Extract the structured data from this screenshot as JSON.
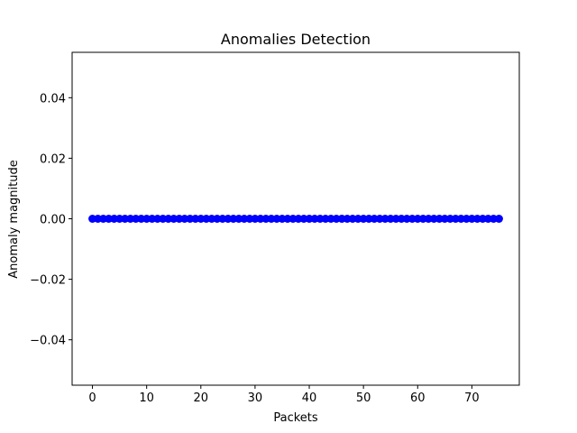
{
  "chart_data": {
    "type": "scatter",
    "title": "Anomalies Detection",
    "xlabel": "Packets",
    "ylabel": "Anomaly magnitude",
    "xlim": [
      -3.75,
      78.75
    ],
    "ylim": [
      -0.055,
      0.055
    ],
    "x_ticks": [
      0,
      10,
      20,
      30,
      40,
      50,
      60,
      70
    ],
    "y_ticks": [
      -0.04,
      -0.02,
      0.0,
      0.02,
      0.04
    ],
    "y_tick_labels": [
      "−0.04",
      "−0.02",
      "0.00",
      "0.02",
      "0.04"
    ],
    "grid": false,
    "series_color": "#0000ff",
    "series": [
      {
        "x": [
          0,
          1,
          2,
          3,
          4,
          5,
          6,
          7,
          8,
          9,
          10,
          11,
          12,
          13,
          14,
          15,
          16,
          17,
          18,
          19,
          20,
          21,
          22,
          23,
          24,
          25,
          26,
          27,
          28,
          29,
          30,
          31,
          32,
          33,
          34,
          35,
          36,
          37,
          38,
          39,
          40,
          41,
          42,
          43,
          44,
          45,
          46,
          47,
          48,
          49,
          50,
          51,
          52,
          53,
          54,
          55,
          56,
          57,
          58,
          59,
          60,
          61,
          62,
          63,
          64,
          65,
          66,
          67,
          68,
          69,
          70,
          71,
          72,
          73,
          74,
          75
        ],
        "y": [
          0,
          0,
          0,
          0,
          0,
          0,
          0,
          0,
          0,
          0,
          0,
          0,
          0,
          0,
          0,
          0,
          0,
          0,
          0,
          0,
          0,
          0,
          0,
          0,
          0,
          0,
          0,
          0,
          0,
          0,
          0,
          0,
          0,
          0,
          0,
          0,
          0,
          0,
          0,
          0,
          0,
          0,
          0,
          0,
          0,
          0,
          0,
          0,
          0,
          0,
          0,
          0,
          0,
          0,
          0,
          0,
          0,
          0,
          0,
          0,
          0,
          0,
          0,
          0,
          0,
          0,
          0,
          0,
          0,
          0,
          0,
          0,
          0,
          0,
          0,
          0
        ]
      }
    ]
  }
}
